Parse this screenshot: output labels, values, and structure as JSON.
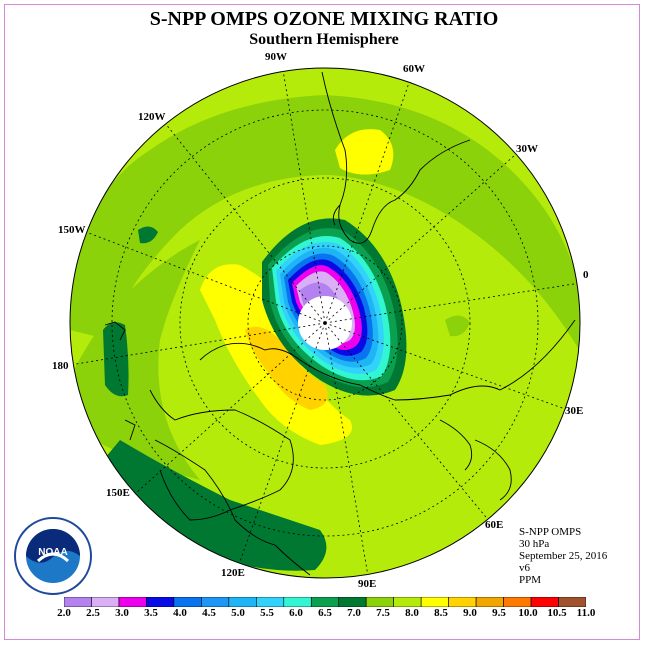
{
  "title": "S-NPP OMPS OZONE MIXING RATIO",
  "subtitle": "Southern Hemisphere",
  "logo_text": "NOAA",
  "lon_labels": {
    "l90w": "90W",
    "l60w": "60W",
    "l120w": "120W",
    "l30w": "30W",
    "l150w": "150W",
    "l0": "0",
    "l180": "180",
    "l30e": "30E",
    "l150e": "150E",
    "l60e": "60E",
    "l120e": "120E",
    "l90e": "90E"
  },
  "info": {
    "instrument": "S-NPP OMPS",
    "level": "30 hPa",
    "date": "September 25, 2016",
    "version": "v6",
    "units": "PPM"
  },
  "colorbar": {
    "labels": [
      "2.0",
      "2.5",
      "3.0",
      "3.5",
      "4.0",
      "4.5",
      "5.0",
      "5.5",
      "6.0",
      "6.5",
      "7.0",
      "7.5",
      "8.0",
      "8.5",
      "9.0",
      "9.5",
      "10.0",
      "10.5",
      "11.0"
    ],
    "colors": [
      "#b482f0",
      "#d9b0f5",
      "#ee00ee",
      "#0a0ae6",
      "#0a73f0",
      "#1e96f5",
      "#1eb4f5",
      "#32d2fa",
      "#32f5d2",
      "#0aa050",
      "#007832",
      "#8cd20a",
      "#b4eb0a",
      "#ffff00",
      "#ffd200",
      "#f0a500",
      "#ff7800",
      "#ff0000",
      "#a0522d"
    ]
  }
}
